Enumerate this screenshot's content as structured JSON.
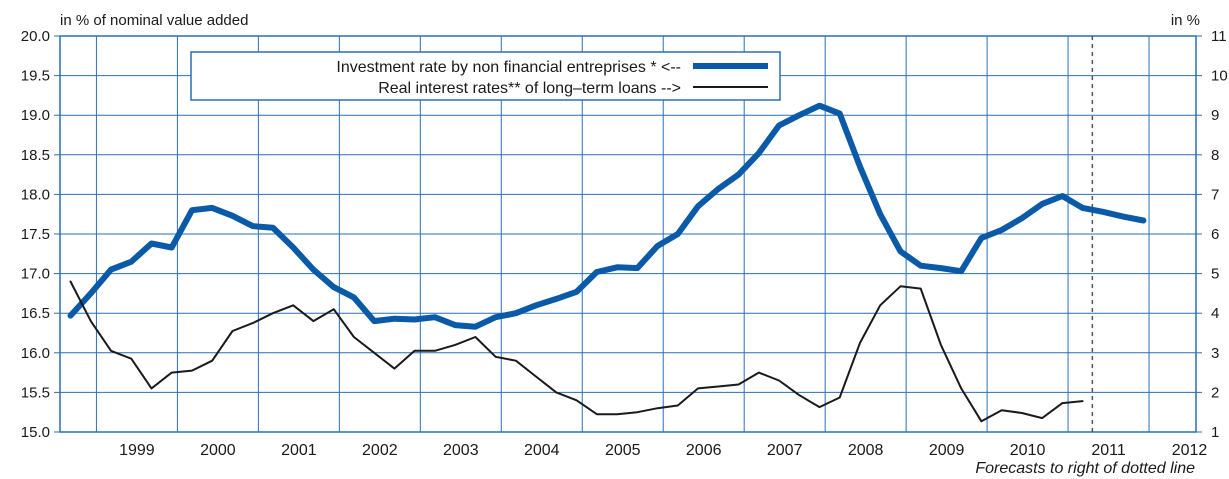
{
  "chart_data": {
    "type": "line",
    "left_axis_label": "in % of nominal value added",
    "right_axis_label": "in %",
    "footnote": "Forecasts to right of dotted line",
    "x_range": [
      1998.55,
      2012.58
    ],
    "y_left_range": [
      15.0,
      20.0
    ],
    "y_right_range": [
      1,
      11
    ],
    "y_left_ticks": [
      "15.0",
      "15.5",
      "16.0",
      "16.5",
      "17.0",
      "17.5",
      "18.0",
      "18.5",
      "19.0",
      "19.5",
      "20.0"
    ],
    "y_right_ticks": [
      "1",
      "2",
      "3",
      "4",
      "5",
      "6",
      "7",
      "8",
      "9",
      "10",
      "11"
    ],
    "x_tick_labels": [
      "1999",
      "2000",
      "2001",
      "2002",
      "2003",
      "2004",
      "2005",
      "2006",
      "2007",
      "2008",
      "2009",
      "2010",
      "2011",
      "2012"
    ],
    "forecast_start": 2011.3,
    "grid": true,
    "legend_position": "top-left",
    "colors": {
      "investment": "#0a5aa8",
      "interest": "#1a1a1a",
      "grid": "#2a6fba",
      "frame": "#2a6fba"
    },
    "series": [
      {
        "name": "Investment rate by non financial entreprises * <--",
        "axis": "left",
        "style": "thick",
        "x": [
          1998.68,
          1998.93,
          1999.18,
          1999.43,
          1999.68,
          1999.93,
          2000.18,
          2000.43,
          2000.68,
          2000.93,
          2001.18,
          2001.43,
          2001.68,
          2001.93,
          2002.18,
          2002.43,
          2002.68,
          2002.93,
          2003.18,
          2003.43,
          2003.68,
          2003.93,
          2004.18,
          2004.43,
          2004.68,
          2004.93,
          2005.18,
          2005.43,
          2005.68,
          2005.93,
          2006.18,
          2006.43,
          2006.68,
          2006.93,
          2007.18,
          2007.43,
          2007.68,
          2007.93,
          2008.18,
          2008.43,
          2008.68,
          2008.93,
          2009.18,
          2009.43,
          2009.68,
          2009.93,
          2010.18,
          2010.43,
          2010.68,
          2010.93,
          2011.18,
          2011.43,
          2011.68,
          2011.93
        ],
        "values": [
          16.47,
          16.75,
          17.05,
          17.15,
          17.38,
          17.33,
          17.8,
          17.83,
          17.73,
          17.6,
          17.58,
          17.33,
          17.05,
          16.83,
          16.7,
          16.4,
          16.43,
          16.42,
          16.45,
          16.35,
          16.33,
          16.45,
          16.5,
          16.6,
          16.68,
          16.77,
          17.02,
          17.08,
          17.07,
          17.35,
          17.5,
          17.85,
          18.07,
          18.25,
          18.52,
          18.87,
          19.0,
          19.12,
          19.02,
          18.35,
          17.75,
          17.28,
          17.1,
          17.07,
          17.03,
          17.45,
          17.55,
          17.7,
          17.88,
          17.98,
          17.83,
          17.78,
          17.72,
          17.67
        ]
      },
      {
        "name": "Real interest rates** of long–term loans -->",
        "axis": "right",
        "style": "thin",
        "x": [
          1998.68,
          1998.93,
          1999.18,
          1999.43,
          1999.68,
          1999.93,
          2000.18,
          2000.43,
          2000.68,
          2000.93,
          2001.18,
          2001.43,
          2001.68,
          2001.93,
          2002.18,
          2002.43,
          2002.68,
          2002.93,
          2003.18,
          2003.43,
          2003.68,
          2003.93,
          2004.18,
          2004.43,
          2004.68,
          2004.93,
          2005.18,
          2005.43,
          2005.68,
          2005.93,
          2006.18,
          2006.43,
          2006.68,
          2006.93,
          2007.18,
          2007.43,
          2007.68,
          2007.93,
          2008.18,
          2008.43,
          2008.68,
          2008.93,
          2009.18,
          2009.43,
          2009.68,
          2009.93,
          2010.18,
          2010.43,
          2010.68,
          2010.93,
          2011.18
        ],
        "values": [
          4.8,
          3.8,
          3.05,
          2.85,
          2.1,
          2.5,
          2.55,
          2.8,
          3.55,
          3.75,
          4.0,
          4.2,
          3.8,
          4.1,
          3.4,
          3.0,
          2.6,
          3.05,
          3.05,
          3.2,
          3.4,
          2.9,
          2.8,
          2.4,
          2.0,
          1.8,
          1.45,
          1.45,
          1.5,
          1.6,
          1.67,
          2.1,
          2.15,
          2.2,
          2.5,
          2.3,
          1.93,
          1.63,
          1.87,
          3.25,
          4.2,
          4.68,
          4.62,
          3.2,
          2.1,
          1.27,
          1.55,
          1.48,
          1.35,
          1.73,
          1.78
        ]
      }
    ]
  }
}
